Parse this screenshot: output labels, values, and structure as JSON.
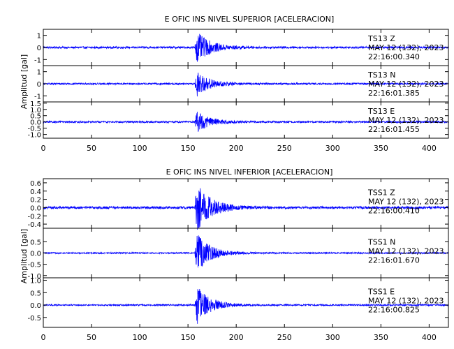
{
  "chart_data": [
    {
      "type": "line",
      "title": "E OFIC INS NIVEL SUPERIOR [ACELERACION]",
      "ylabel": "Amplitud [gal]",
      "xlim": [
        0,
        420
      ],
      "x_ticks": [
        0,
        50,
        100,
        150,
        200,
        250,
        300,
        350,
        400
      ],
      "panels": [
        {
          "ylim": [
            -1.5,
            1.5
          ],
          "y_ticks": [
            "-1",
            "0",
            "1"
          ],
          "y_tick_values": [
            -1,
            0,
            1
          ],
          "station": "TS13",
          "component": "Z",
          "date": "MAY 12 (132), 2023",
          "time": "22:16:00.340",
          "signal": {
            "event_onset": 157,
            "peak_amplitude": 1.5,
            "noise_amplitude": 0.08,
            "decay_seconds": 14
          }
        },
        {
          "ylim": [
            -1.5,
            1.5
          ],
          "y_ticks": [
            "-1",
            "0",
            "1"
          ],
          "y_tick_values": [
            -1,
            0,
            1
          ],
          "station": "TS13",
          "component": "N",
          "date": "MAY 12 (132), 2023",
          "time": "22:16:01.385",
          "signal": {
            "event_onset": 157,
            "peak_amplitude": 1.2,
            "noise_amplitude": 0.07,
            "decay_seconds": 13
          }
        },
        {
          "ylim": [
            -1.3,
            1.6
          ],
          "y_ticks": [
            "-1.0",
            "-0.5",
            "0.0",
            "0.5",
            "1.0",
            "1.5"
          ],
          "y_tick_values": [
            -1.0,
            -0.5,
            0.0,
            0.5,
            1.0,
            1.5
          ],
          "station": "TS13",
          "component": "E",
          "date": "MAY 12 (132), 2023",
          "time": "22:16:01.455",
          "signal": {
            "event_onset": 157,
            "peak_amplitude": 1.0,
            "noise_amplitude": 0.07,
            "decay_seconds": 13
          }
        }
      ]
    },
    {
      "type": "line",
      "title": "E OFIC INS NIVEL INFERIOR [ACELERACION]",
      "ylabel": "Amplitud [gal]",
      "xlim": [
        0,
        420
      ],
      "x_ticks": [
        0,
        50,
        100,
        150,
        200,
        250,
        300,
        350,
        400
      ],
      "panels": [
        {
          "ylim": [
            -0.5,
            0.7
          ],
          "y_ticks": [
            "-0.4",
            "-0.2",
            "0.0",
            "0.2",
            "0.4",
            "0.6"
          ],
          "y_tick_values": [
            -0.4,
            -0.2,
            0.0,
            0.2,
            0.4,
            0.6
          ],
          "station": "TSS1",
          "component": "Z",
          "date": "MAY 12 (132), 2023",
          "time": "22:16:00.410",
          "signal": {
            "event_onset": 157,
            "peak_amplitude": 0.65,
            "noise_amplitude": 0.03,
            "decay_seconds": 15
          }
        },
        {
          "ylim": [
            -1.1,
            1.1
          ],
          "y_ticks": [
            "-1.0",
            "-0.5",
            "0.0",
            "0.5"
          ],
          "y_tick_values": [
            -1.0,
            -0.5,
            0.0,
            0.5
          ],
          "station": "TSS1",
          "component": "N",
          "date": "MAY 12 (132), 2023",
          "time": "22:16:01.670",
          "signal": {
            "event_onset": 157,
            "peak_amplitude": 1.0,
            "noise_amplitude": 0.03,
            "decay_seconds": 14
          }
        },
        {
          "ylim": [
            -0.9,
            1.1
          ],
          "y_ticks": [
            "-0.5",
            "0.0",
            "0.5",
            "1.0"
          ],
          "y_tick_values": [
            -0.5,
            0.0,
            0.5,
            1.0
          ],
          "station": "TSS1",
          "component": "E",
          "date": "MAY 12 (132), 2023",
          "time": "22:16:00.825",
          "signal": {
            "event_onset": 157,
            "peak_amplitude": 0.9,
            "noise_amplitude": 0.03,
            "decay_seconds": 14
          }
        }
      ]
    }
  ],
  "colors": {
    "trace": "#0000ff",
    "axes": "#000000"
  }
}
